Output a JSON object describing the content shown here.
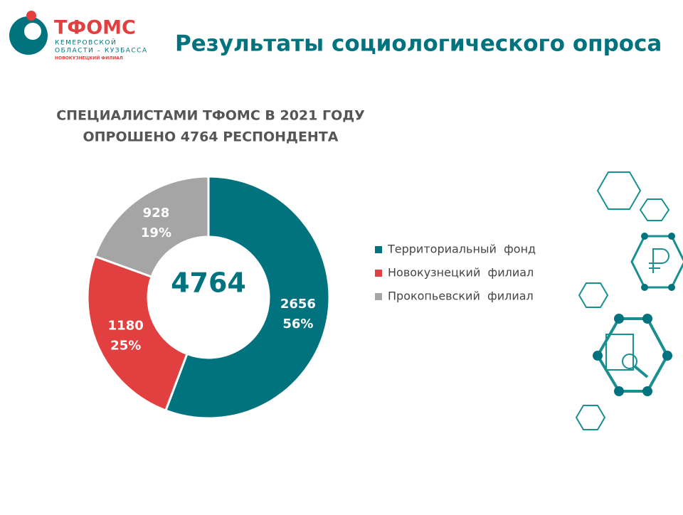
{
  "logo": {
    "name": "ТФОМС",
    "line1": "КЕМЕРОВСКОЙ",
    "line2": "ОБЛАСТИ – КУЗБАССА",
    "line3": "НОВОКУЗНЕЦКИЙ ФИЛИАЛ"
  },
  "header": "Результаты социологического опроса",
  "chart_data": {
    "type": "pie",
    "title_lines": [
      "СПЕЦИАЛИСТАМИ ТФОМС В 2021 ГОДУ",
      "ОПРОШЕНО 4764 РЕСПОНДЕНТА"
    ],
    "total": 4764,
    "categories": [
      "Территориальный  фонд",
      "Новокузнецкий  филиал",
      "Прокопьевский  филиал"
    ],
    "values": [
      2656,
      1180,
      928
    ],
    "percents": [
      56,
      25,
      19
    ],
    "percent_labels": [
      "56%",
      "25%",
      "19%"
    ],
    "colors": [
      "#00737f",
      "#e24040",
      "#a5a5a5"
    ],
    "legend": "right"
  }
}
